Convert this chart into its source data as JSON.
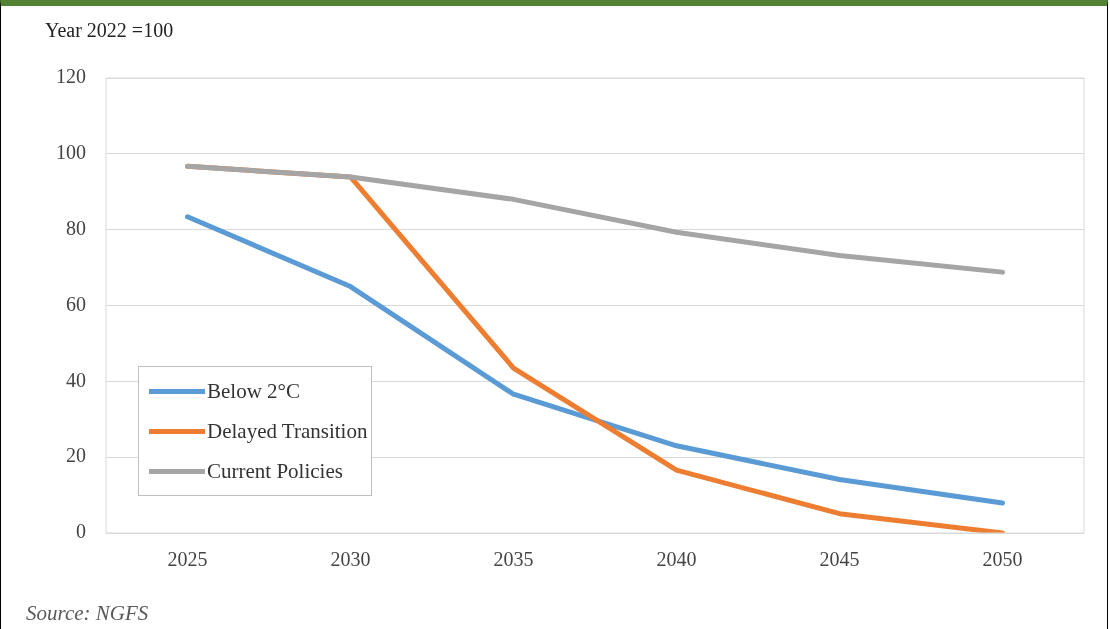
{
  "chart_data": {
    "type": "line",
    "ylabel": "Year 2022 =100",
    "categories": [
      "2025",
      "2030",
      "2035",
      "2040",
      "2045",
      "2050"
    ],
    "series": [
      {
        "name": "Below 2°C",
        "color": "#5b9bd5",
        "values": [
          83.4,
          65,
          36.6,
          23,
          14.1,
          7.9
        ]
      },
      {
        "name": "Delayed Transition",
        "color": "#ed7d31",
        "values": [
          96.7,
          93.9,
          43.5,
          16.6,
          5.1,
          0
        ]
      },
      {
        "name": "Current Policies",
        "color": "#a5a5a5",
        "values": [
          96.7,
          93.9,
          88,
          79.3,
          73.2,
          68.8
        ]
      }
    ],
    "ylim": [
      0,
      120
    ],
    "yticks": [
      0,
      20,
      40,
      60,
      80,
      100,
      120
    ],
    "grid": "y",
    "legend": "bottom left",
    "marker": "none",
    "line_style": "solid",
    "annotations": [
      "Source: NGFS"
    ]
  }
}
